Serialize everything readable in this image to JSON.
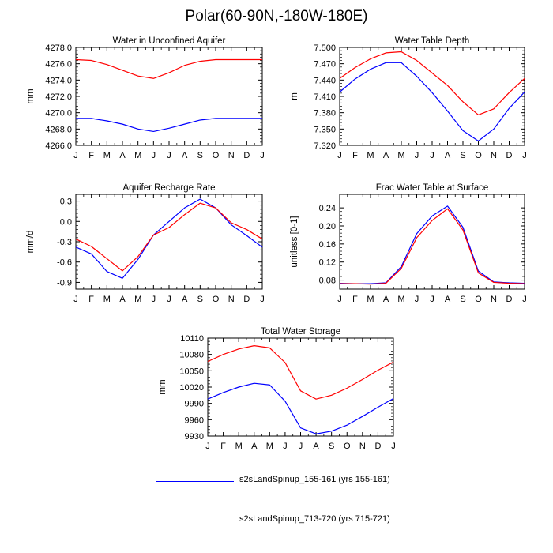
{
  "title": "Polar(60-90N,-180W-180E)",
  "colors": {
    "series_1": "#0000ff",
    "series_2": "#ff0000"
  },
  "legend": [
    {
      "label": "s2sLandSpinup_155-161 (yrs 155-161)",
      "color": "#0000ff"
    },
    {
      "label": "s2sLandSpinup_713-720 (yrs 715-721)",
      "color": "#ff0000"
    }
  ],
  "chart_data": [
    {
      "id": "aquifer",
      "type": "line",
      "title": "Water in Unconfined Aquifer",
      "xlabel": "",
      "ylabel": "mm",
      "categories": [
        "J",
        "F",
        "M",
        "A",
        "M",
        "J",
        "J",
        "A",
        "S",
        "O",
        "N",
        "D",
        "J"
      ],
      "ylim": [
        4266.0,
        4278.0
      ],
      "yticks": [
        "4266.0",
        "4268.0",
        "4270.0",
        "4272.0",
        "4274.0",
        "4276.0",
        "4278.0"
      ],
      "series": [
        {
          "name": "s2sLandSpinup_155-161 (yrs 155-161)",
          "values": [
            4269.3,
            4269.3,
            4269.0,
            4268.6,
            4268.0,
            4267.7,
            4268.1,
            4268.6,
            4269.1,
            4269.3,
            4269.3,
            4269.3,
            4269.3
          ]
        },
        {
          "name": "s2sLandSpinup_713-720 (yrs 715-721)",
          "values": [
            4276.5,
            4276.4,
            4275.9,
            4275.2,
            4274.5,
            4274.2,
            4274.9,
            4275.8,
            4276.3,
            4276.5,
            4276.5,
            4276.5,
            4276.5
          ]
        }
      ]
    },
    {
      "id": "depth",
      "type": "line",
      "title": "Water Table Depth",
      "xlabel": "",
      "ylabel": "m",
      "categories": [
        "J",
        "F",
        "M",
        "A",
        "M",
        "J",
        "J",
        "A",
        "S",
        "O",
        "N",
        "D",
        "J"
      ],
      "ylim": [
        7.32,
        7.5
      ],
      "yticks": [
        "7.320",
        "7.350",
        "7.380",
        "7.410",
        "7.440",
        "7.470",
        "7.500"
      ],
      "series": [
        {
          "name": "s2sLandSpinup_155-161 (yrs 155-161)",
          "values": [
            7.418,
            7.442,
            7.46,
            7.472,
            7.472,
            7.447,
            7.417,
            7.383,
            7.347,
            7.328,
            7.35,
            7.388,
            7.418
          ]
        },
        {
          "name": "s2sLandSpinup_713-720 (yrs 715-721)",
          "values": [
            7.443,
            7.463,
            7.479,
            7.49,
            7.492,
            7.476,
            7.453,
            7.43,
            7.4,
            7.376,
            7.387,
            7.417,
            7.443
          ]
        }
      ]
    },
    {
      "id": "recharge",
      "type": "line",
      "title": "Aquifer Recharge Rate",
      "xlabel": "",
      "ylabel": "mm/d",
      "categories": [
        "J",
        "F",
        "M",
        "A",
        "M",
        "J",
        "J",
        "A",
        "S",
        "O",
        "N",
        "D",
        "J"
      ],
      "ylim": [
        -1.0,
        0.4
      ],
      "yticks": [
        "-0.9",
        "-0.6",
        "-0.3",
        "0.0",
        "0.3"
      ],
      "yticks_at": [
        -0.9,
        -0.6,
        -0.3,
        0.0,
        0.3
      ],
      "series": [
        {
          "name": "s2sLandSpinup_155-161 (yrs 155-161)",
          "values": [
            -0.38,
            -0.48,
            -0.74,
            -0.84,
            -0.56,
            -0.2,
            0.0,
            0.2,
            0.33,
            0.2,
            -0.05,
            -0.21,
            -0.38
          ]
        },
        {
          "name": "s2sLandSpinup_713-720 (yrs 715-721)",
          "values": [
            -0.26,
            -0.37,
            -0.55,
            -0.73,
            -0.52,
            -0.2,
            -0.09,
            0.1,
            0.27,
            0.2,
            -0.02,
            -0.12,
            -0.26
          ]
        }
      ]
    },
    {
      "id": "frac",
      "type": "line",
      "title": "Frac Water Table at Surface",
      "xlabel": "",
      "ylabel": "unitless [0-1]",
      "categories": [
        "J",
        "F",
        "M",
        "A",
        "M",
        "J",
        "J",
        "A",
        "S",
        "O",
        "N",
        "D",
        "J"
      ],
      "ylim": [
        0.06,
        0.27
      ],
      "yticks": [
        "0.08",
        "0.12",
        "0.16",
        "0.20",
        "0.24"
      ],
      "yticks_at": [
        0.08,
        0.12,
        0.16,
        0.2,
        0.24
      ],
      "series": [
        {
          "name": "s2sLandSpinup_155-161 (yrs 155-161)",
          "values": [
            0.073,
            0.072,
            0.072,
            0.074,
            0.11,
            0.183,
            0.222,
            0.244,
            0.197,
            0.1,
            0.076,
            0.074,
            0.073
          ]
        },
        {
          "name": "s2sLandSpinup_713-720 (yrs 715-721)",
          "values": [
            0.072,
            0.072,
            0.071,
            0.073,
            0.106,
            0.174,
            0.212,
            0.238,
            0.191,
            0.096,
            0.075,
            0.073,
            0.072
          ]
        }
      ]
    },
    {
      "id": "storage",
      "type": "line",
      "title": "Total Water Storage",
      "xlabel": "",
      "ylabel": "mm",
      "categories": [
        "J",
        "F",
        "M",
        "A",
        "M",
        "J",
        "J",
        "A",
        "S",
        "O",
        "N",
        "D",
        "J"
      ],
      "ylim": [
        9930,
        10110
      ],
      "yticks": [
        "9930",
        "9960",
        "9990",
        "10020",
        "10050",
        "10080",
        "10110"
      ],
      "series": [
        {
          "name": "s2sLandSpinup_155-161 (yrs 155-161)",
          "values": [
            9998,
            10010,
            10020,
            10027,
            10024,
            9994,
            9945,
            9934,
            9939,
            9950,
            9966,
            9983,
            9999
          ]
        },
        {
          "name": "s2sLandSpinup_713-720 (yrs 715-721)",
          "values": [
            10067,
            10080,
            10090,
            10096,
            10092,
            10065,
            10013,
            9998,
            10005,
            10018,
            10034,
            10051,
            10066
          ]
        }
      ]
    }
  ]
}
